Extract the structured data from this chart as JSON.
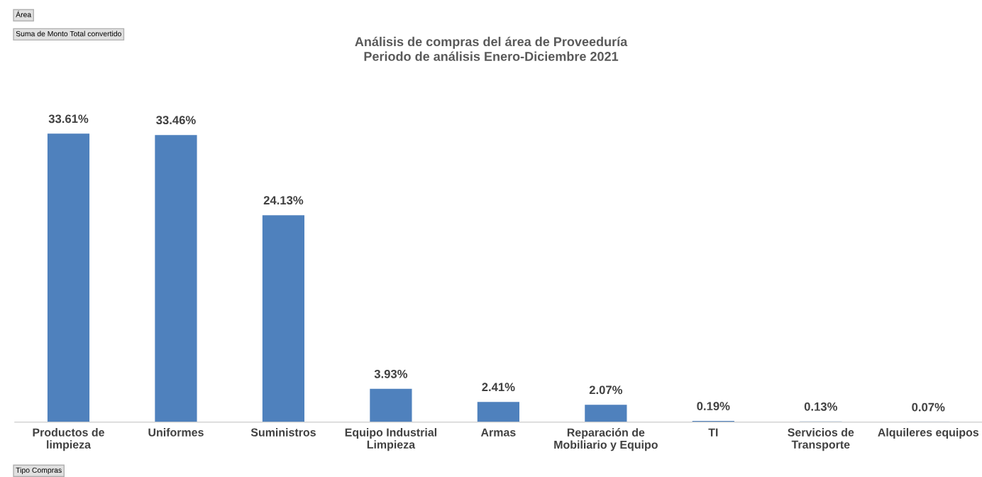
{
  "chart_data": {
    "type": "bar",
    "title": "Análisis de compras del área de Proveeduría\nPeriodo de análisis Enero-Diciembre 2021",
    "categories": [
      "Productos de\nlimpieza",
      "Uniformes",
      "Suministros",
      "Equipo Industrial\nLimpieza",
      "Armas",
      "Reparación de\nMobiliario y Equipo",
      "TI",
      "Servicios de\nTransporte",
      "Alquileres equipos"
    ],
    "values": [
      33.61,
      33.46,
      24.13,
      3.93,
      2.41,
      2.07,
      0.19,
      0.13,
      0.07
    ],
    "value_labels": [
      "33.61%",
      "33.46%",
      "24.13%",
      "3.93%",
      "2.41%",
      "2.07%",
      "0.19%",
      "0.13%",
      "0.07%"
    ],
    "color": "#4f81bd",
    "grid": false,
    "legend": false,
    "annotations": [
      "Área",
      "Suma de Monto Total convertido",
      "Tipo Compras"
    ]
  }
}
